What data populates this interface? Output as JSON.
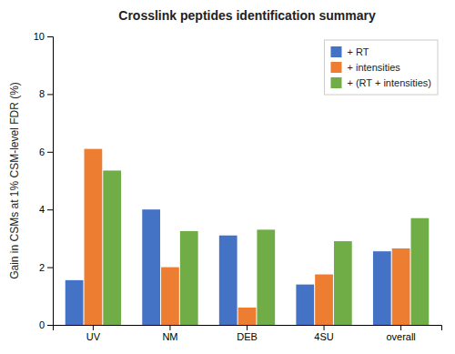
{
  "chart_data": {
    "type": "bar",
    "title": "Crosslink peptides identification summary",
    "ylabel": "Gain in CSMs at 1% CSM-level FDR (%)",
    "categories": [
      "UV",
      "NM",
      "DEB",
      "4SU",
      "overall"
    ],
    "series": [
      {
        "name": "+ RT",
        "color": "#4472c4",
        "values": [
          1.55,
          4.0,
          3.1,
          1.4,
          2.55
        ]
      },
      {
        "name": "+ intensities",
        "color": "#ed7d31",
        "values": [
          6.1,
          2.0,
          0.6,
          1.75,
          2.65
        ]
      },
      {
        "name": "+ (RT + intensities)",
        "color": "#70ad47",
        "values": [
          5.35,
          3.25,
          3.3,
          2.9,
          3.7
        ]
      }
    ],
    "ylim": [
      0,
      10
    ],
    "yticks": [
      0,
      2,
      4,
      6,
      8,
      10
    ],
    "legend": "upper right",
    "grid": false
  }
}
